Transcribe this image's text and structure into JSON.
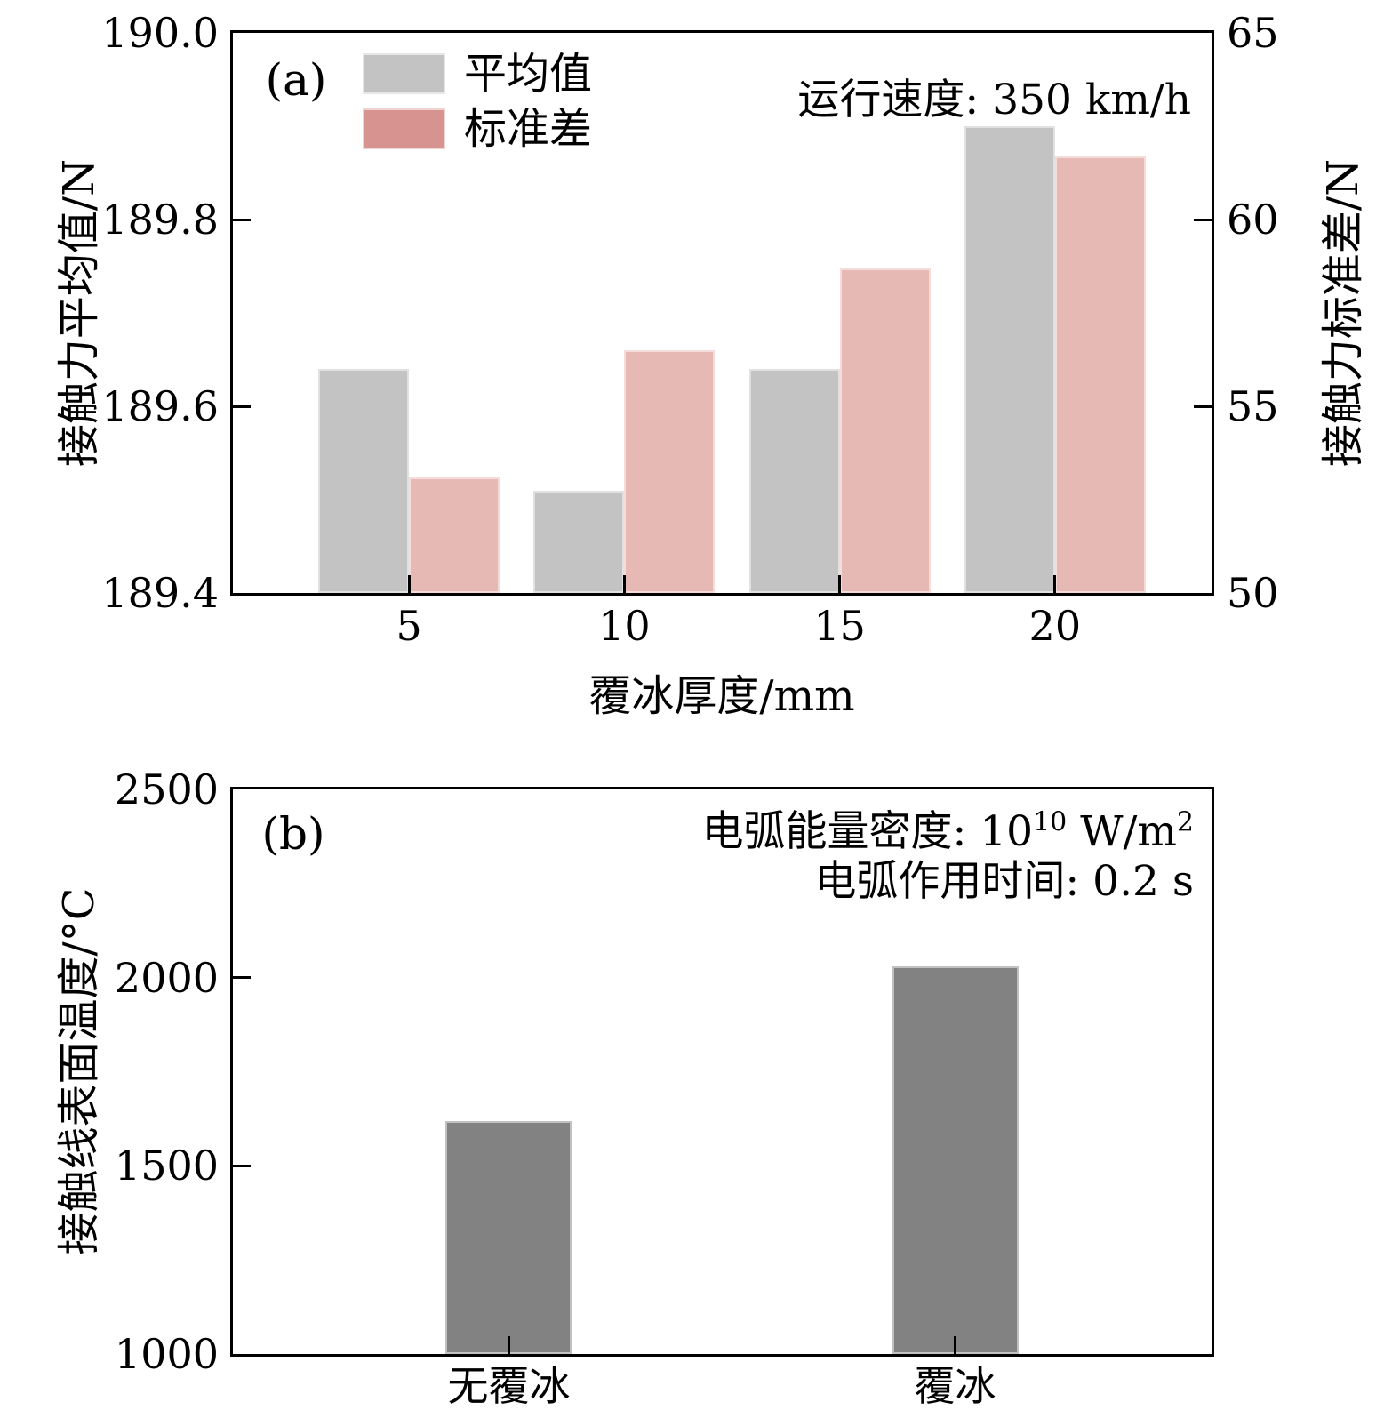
{
  "panel_a": {
    "label": "(a)",
    "annotation": "运行速度: 350 km/h",
    "x_title": "覆冰厚度/mm",
    "y_left_title": "接触力平均值/N",
    "y_right_title": "接触力标准差/N",
    "legend": {
      "mean_label": "平均值",
      "std_label": "标准差"
    },
    "y_left_tick_labels": [
      "190.0",
      "189.8",
      "189.6",
      "189.4"
    ],
    "y_right_tick_labels": [
      "65",
      "60",
      "55",
      "50"
    ],
    "x_tick_labels": [
      "5",
      "10",
      "15",
      "20"
    ]
  },
  "panel_b": {
    "label": "(b)",
    "annotation_line1": {
      "part1": "电弧能量密度: 10",
      "sup1": "10",
      "part2": " W/m",
      "sup2": "2"
    },
    "annotation_line2": "电弧作用时间: 0.2 s",
    "y_title": "接触线表面温度/°C",
    "y_tick_labels": [
      "2500",
      "2000",
      "1500",
      "1000"
    ],
    "x_tick_labels": [
      "无覆冰",
      "覆冰"
    ]
  },
  "colors": {
    "mean_bar": "#c3c3c3",
    "std_bar": "#e6b9b5",
    "legend_mean_swatch": "#c3c3c3",
    "legend_std_swatch": "#d6938f",
    "temp_bar": "#828282",
    "axis": "#000000"
  },
  "chart_data": [
    {
      "type": "bar",
      "panel": "(a)",
      "categories": [
        "5",
        "10",
        "15",
        "20"
      ],
      "xlabel": "覆冰厚度/mm",
      "ylabel_left": "接触力平均值/N",
      "ylabel_right": "接触力标准差/N",
      "ylim_left": [
        189.4,
        190.0
      ],
      "ylim_right": [
        50,
        65
      ],
      "yticks_left": [
        189.4,
        189.6,
        189.8,
        190.0
      ],
      "yticks_right": [
        50,
        55,
        60,
        65
      ],
      "series": [
        {
          "name": "平均值",
          "axis": "left",
          "values": [
            189.64,
            189.51,
            189.64,
            189.9
          ]
        },
        {
          "name": "标准差",
          "axis": "right",
          "values": [
            53.1,
            56.5,
            58.7,
            61.7
          ]
        }
      ],
      "annotation": "运行速度: 350 km/h",
      "legend_position": "upper left",
      "grid": false
    },
    {
      "type": "bar",
      "panel": "(b)",
      "categories": [
        "无覆冰",
        "覆冰"
      ],
      "xlabel": "",
      "ylabel": "接触线表面温度/°C",
      "ylim": [
        1000,
        2500
      ],
      "yticks": [
        1000,
        1500,
        2000,
        2500
      ],
      "values": [
        1620,
        2030
      ],
      "annotations": [
        "电弧能量密度: 10^10 W/m^2",
        "电弧作用时间: 0.2 s"
      ],
      "grid": false
    }
  ]
}
